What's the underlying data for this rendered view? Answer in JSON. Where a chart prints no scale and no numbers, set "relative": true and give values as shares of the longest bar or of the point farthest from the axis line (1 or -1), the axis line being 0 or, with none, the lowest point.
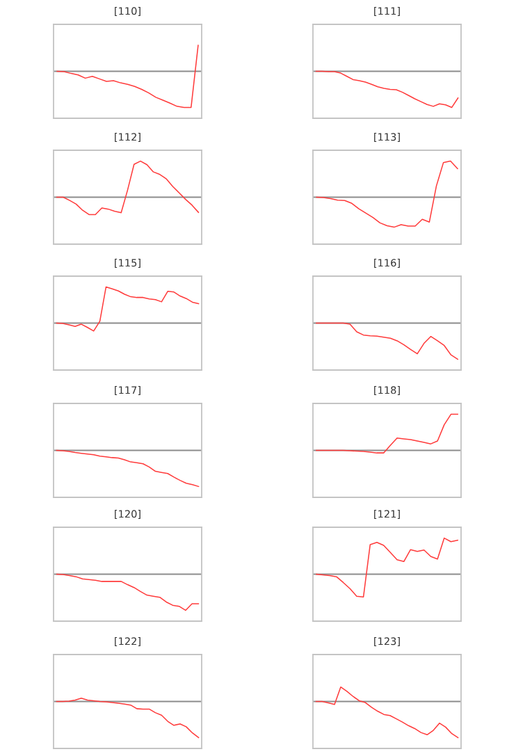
{
  "chart_data": [
    {
      "type": "line",
      "title": "[110]",
      "relative": true,
      "color": "#ff3b3b",
      "categories": [
        null,
        null,
        null,
        null,
        null,
        null,
        null,
        null,
        null,
        null,
        null,
        null,
        null,
        null,
        null,
        null,
        null,
        null,
        null,
        null,
        null
      ],
      "values": [
        0,
        -0.01,
        -0.06,
        -0.1,
        -0.19,
        -0.14,
        -0.21,
        -0.28,
        -0.26,
        -0.32,
        -0.36,
        -0.42,
        -0.5,
        -0.6,
        -0.72,
        -0.8,
        -0.88,
        -0.97,
        -1,
        -1,
        0.72
      ]
    },
    {
      "type": "line",
      "title": "[111]",
      "relative": true,
      "color": "#ff3b3b",
      "categories": [
        null,
        null,
        null,
        null,
        null,
        null,
        null,
        null,
        null,
        null,
        null,
        null,
        null,
        null,
        null,
        null,
        null,
        null,
        null,
        null,
        null,
        null,
        null,
        null
      ],
      "values": [
        0,
        0,
        -0.01,
        -0.01,
        -0.05,
        -0.14,
        -0.23,
        -0.26,
        -0.3,
        -0.36,
        -0.43,
        -0.47,
        -0.5,
        -0.51,
        -0.58,
        -0.67,
        -0.76,
        -0.84,
        -0.92,
        -0.97,
        -0.9,
        -0.93,
        -1,
        -0.74
      ]
    },
    {
      "type": "line",
      "title": "[112]",
      "relative": true,
      "color": "#ff3b3b",
      "categories": [
        null,
        null,
        null,
        null,
        null,
        null,
        null,
        null,
        null,
        null,
        null,
        null,
        null,
        null,
        null,
        null,
        null,
        null,
        null,
        null,
        null,
        null,
        null
      ],
      "values": [
        0,
        0,
        -0.09,
        -0.19,
        -0.36,
        -0.48,
        -0.48,
        -0.3,
        -0.33,
        -0.39,
        -0.43,
        0.2,
        0.91,
        1,
        0.9,
        0.7,
        0.63,
        0.51,
        0.3,
        0.12,
        -0.06,
        -0.22,
        -0.42
      ]
    },
    {
      "type": "line",
      "title": "[113]",
      "relative": true,
      "color": "#ff3b3b",
      "categories": [
        null,
        null,
        null,
        null,
        null,
        null,
        null,
        null,
        null,
        null,
        null,
        null,
        null,
        null,
        null,
        null,
        null,
        null,
        null,
        null,
        null
      ],
      "values": [
        0,
        -0.01,
        -0.04,
        -0.08,
        -0.09,
        -0.17,
        -0.32,
        -0.44,
        -0.56,
        -0.71,
        -0.79,
        -0.83,
        -0.76,
        -0.8,
        -0.8,
        -0.61,
        -0.69,
        0.31,
        0.96,
        1,
        0.79
      ]
    },
    {
      "type": "line",
      "title": "[115]",
      "relative": true,
      "color": "#ff3b3b",
      "categories": [
        null,
        null,
        null,
        null,
        null,
        null,
        null,
        null,
        null,
        null,
        null,
        null,
        null,
        null,
        null,
        null,
        null,
        null,
        null,
        null,
        null,
        null,
        null,
        null
      ],
      "values": [
        0,
        -0.01,
        -0.05,
        -0.09,
        -0.03,
        -0.12,
        -0.22,
        0.05,
        1,
        0.95,
        0.89,
        0.8,
        0.73,
        0.71,
        0.71,
        0.67,
        0.65,
        0.59,
        0.88,
        0.86,
        0.75,
        0.68,
        0.58,
        0.54
      ]
    },
    {
      "type": "line",
      "title": "[116]",
      "relative": true,
      "color": "#ff3b3b",
      "categories": [
        null,
        null,
        null,
        null,
        null,
        null,
        null,
        null,
        null,
        null,
        null,
        null,
        null,
        null,
        null,
        null,
        null,
        null,
        null,
        null,
        null,
        null
      ],
      "values": [
        0,
        0,
        0,
        0,
        0,
        -0.03,
        -0.24,
        -0.33,
        -0.35,
        -0.36,
        -0.39,
        -0.42,
        -0.49,
        -0.6,
        -0.73,
        -0.85,
        -0.56,
        -0.37,
        -0.49,
        -0.62,
        -0.88,
        -1
      ]
    },
    {
      "type": "line",
      "title": "[117]",
      "relative": true,
      "color": "#ff3b3b",
      "categories": [
        null,
        null,
        null,
        null,
        null,
        null,
        null,
        null,
        null,
        null,
        null,
        null,
        null,
        null,
        null,
        null,
        null,
        null,
        null,
        null,
        null,
        null,
        null,
        null
      ],
      "values": [
        0,
        -0.01,
        -0.03,
        -0.06,
        -0.08,
        -0.1,
        -0.12,
        -0.16,
        -0.18,
        -0.2,
        -0.21,
        -0.26,
        -0.32,
        -0.34,
        -0.37,
        -0.46,
        -0.58,
        -0.61,
        -0.64,
        -0.74,
        -0.83,
        -0.91,
        -0.95,
        -1
      ]
    },
    {
      "type": "line",
      "title": "[118]",
      "relative": true,
      "color": "#ff3b3b",
      "categories": [
        null,
        null,
        null,
        null,
        null,
        null,
        null,
        null,
        null,
        null,
        null,
        null,
        null,
        null,
        null,
        null,
        null,
        null,
        null,
        null,
        null,
        null
      ],
      "values": [
        0,
        0,
        0,
        0,
        0,
        -0.01,
        -0.02,
        -0.03,
        -0.05,
        -0.07,
        -0.07,
        0.14,
        0.34,
        0.32,
        0.3,
        0.26,
        0.22,
        0.18,
        0.26,
        0.71,
        1,
        1
      ]
    },
    {
      "type": "line",
      "title": "[120]",
      "relative": true,
      "color": "#ff3b3b",
      "categories": [
        null,
        null,
        null,
        null,
        null,
        null,
        null,
        null,
        null,
        null,
        null,
        null,
        null,
        null,
        null,
        null,
        null,
        null,
        null,
        null,
        null,
        null,
        null
      ],
      "values": [
        0,
        -0.01,
        -0.04,
        -0.07,
        -0.13,
        -0.15,
        -0.17,
        -0.2,
        -0.2,
        -0.2,
        -0.2,
        -0.29,
        -0.37,
        -0.48,
        -0.58,
        -0.61,
        -0.64,
        -0.77,
        -0.86,
        -0.89,
        -1,
        -0.82,
        -0.82
      ]
    },
    {
      "type": "line",
      "title": "[121]",
      "relative": true,
      "color": "#ff3b3b",
      "categories": [
        null,
        null,
        null,
        null,
        null,
        null,
        null,
        null,
        null,
        null,
        null,
        null,
        null,
        null,
        null,
        null,
        null,
        null,
        null,
        null,
        null,
        null
      ],
      "values": [
        0,
        -0.02,
        -0.04,
        -0.07,
        -0.23,
        -0.4,
        -0.61,
        -0.63,
        0.82,
        0.88,
        0.8,
        0.6,
        0.4,
        0.35,
        0.68,
        0.63,
        0.67,
        0.49,
        0.42,
        1,
        0.9,
        0.94
      ]
    },
    {
      "type": "line",
      "title": "[122]",
      "relative": true,
      "color": "#ff3b3b",
      "categories": [
        null,
        null,
        null,
        null,
        null,
        null,
        null,
        null,
        null,
        null,
        null,
        null,
        null,
        null,
        null,
        null,
        null,
        null,
        null,
        null,
        null,
        null,
        null,
        null
      ],
      "values": [
        0,
        0,
        0.01,
        0.04,
        0.09,
        0.04,
        0.02,
        0,
        -0.01,
        -0.03,
        -0.05,
        -0.07,
        -0.1,
        -0.2,
        -0.21,
        -0.21,
        -0.31,
        -0.38,
        -0.55,
        -0.66,
        -0.62,
        -0.7,
        -0.87,
        -1
      ]
    },
    {
      "type": "line",
      "title": "[123]",
      "relative": true,
      "color": "#ff3b3b",
      "categories": [
        null,
        null,
        null,
        null,
        null,
        null,
        null,
        null,
        null,
        null,
        null,
        null,
        null,
        null,
        null,
        null,
        null,
        null,
        null,
        null,
        null,
        null,
        null,
        null
      ],
      "values": [
        0,
        0,
        -0.04,
        -0.08,
        0.4,
        0.28,
        0.14,
        0.02,
        -0.03,
        -0.16,
        -0.27,
        -0.36,
        -0.39,
        -0.48,
        -0.57,
        -0.67,
        -0.75,
        -0.86,
        -0.92,
        -0.8,
        -0.6,
        -0.71,
        -0.89,
        -1
      ]
    }
  ]
}
